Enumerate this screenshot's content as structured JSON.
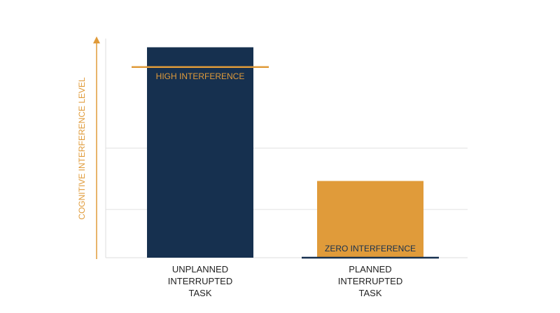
{
  "chart_data": {
    "type": "bar",
    "y_label": "COGNITIVE INTERFERENCE LEVEL",
    "categories": [
      "UNPLANNED INTERRUPTED TASK",
      "PLANNED INTERRUPTED TASK"
    ],
    "values": [
      96,
      35
    ],
    "colors": [
      "#16304f",
      "#e09b3a"
    ],
    "ylim": [
      0,
      100
    ],
    "yticks": [
      22,
      50
    ],
    "grid": true,
    "annotations": [
      {
        "text": "HIGH INTERFERENCE",
        "value": 87,
        "color": "#e09b3a",
        "category": 0
      },
      {
        "text": "ZERO INTERFERENCE",
        "value": 0,
        "color": "#16304f",
        "category": 1
      }
    ]
  }
}
